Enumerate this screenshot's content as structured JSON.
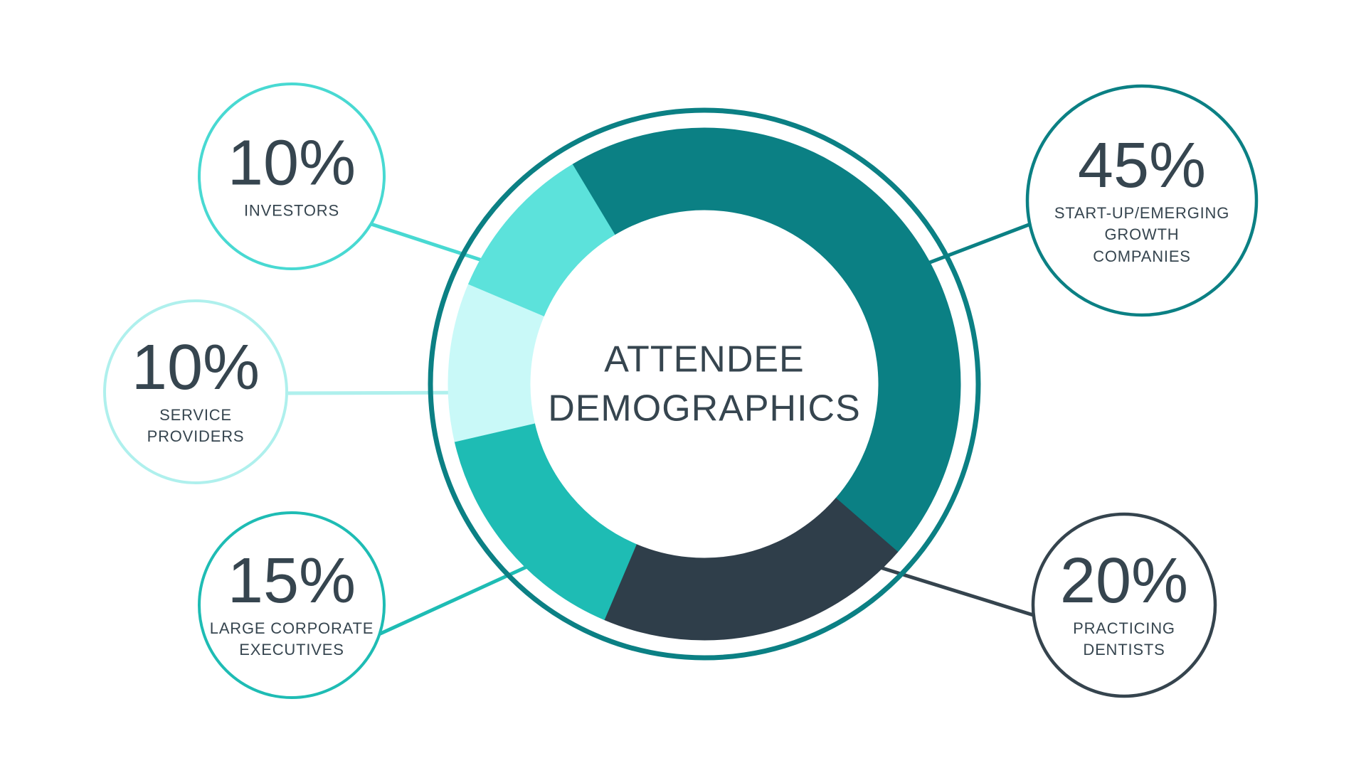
{
  "background": "#FFFFFF",
  "text_color": "#36454F",
  "title_lines": [
    "ATTENDEE",
    "DEMOGRAPHICS"
  ],
  "chart_data": {
    "type": "pie",
    "variant": "donut",
    "title": "ATTENDEE DEMOGRAPHICS",
    "direction": "clockwise",
    "start_angle_deg": -31,
    "outer_ring_color": "#0B8084",
    "hole_color": "#FFFFFF",
    "segments": [
      {
        "label": "START-UP/EMERGING GROWTH COMPANIES",
        "value": 45,
        "color": "#0B8084"
      },
      {
        "label": "PRACTICING DENTISTS",
        "value": 20,
        "color": "#2F3E4A"
      },
      {
        "label": "LARGE CORPORATE EXECUTIVES",
        "value": 15,
        "color": "#1EBCB4"
      },
      {
        "label": "SERVICE PROVIDERS",
        "value": 10,
        "color": "#C9F9F8"
      },
      {
        "label": "INVESTORS",
        "value": 10,
        "color": "#5CE2DB"
      }
    ]
  },
  "callouts": [
    {
      "id": "investors",
      "value": "10%",
      "label_lines": [
        "INVESTORS"
      ],
      "accent": "#48D9D2"
    },
    {
      "id": "service-providers",
      "value": "10%",
      "label_lines": [
        "SERVICE",
        "PROVIDERS"
      ],
      "accent": "#AFF0ED"
    },
    {
      "id": "large-corporate-executives",
      "value": "15%",
      "label_lines": [
        "LARGE CORPORATE",
        "EXECUTIVES"
      ],
      "accent": "#1EBCB4"
    },
    {
      "id": "startup-emerging-growth-companies",
      "value": "45%",
      "label_lines": [
        "START-UP/EMERGING",
        "GROWTH",
        "COMPANIES"
      ],
      "accent": "#0B8084"
    },
    {
      "id": "practicing-dentists",
      "value": "20%",
      "label_lines": [
        "PRACTICING",
        "DENTISTS"
      ],
      "accent": "#35444E"
    }
  ]
}
